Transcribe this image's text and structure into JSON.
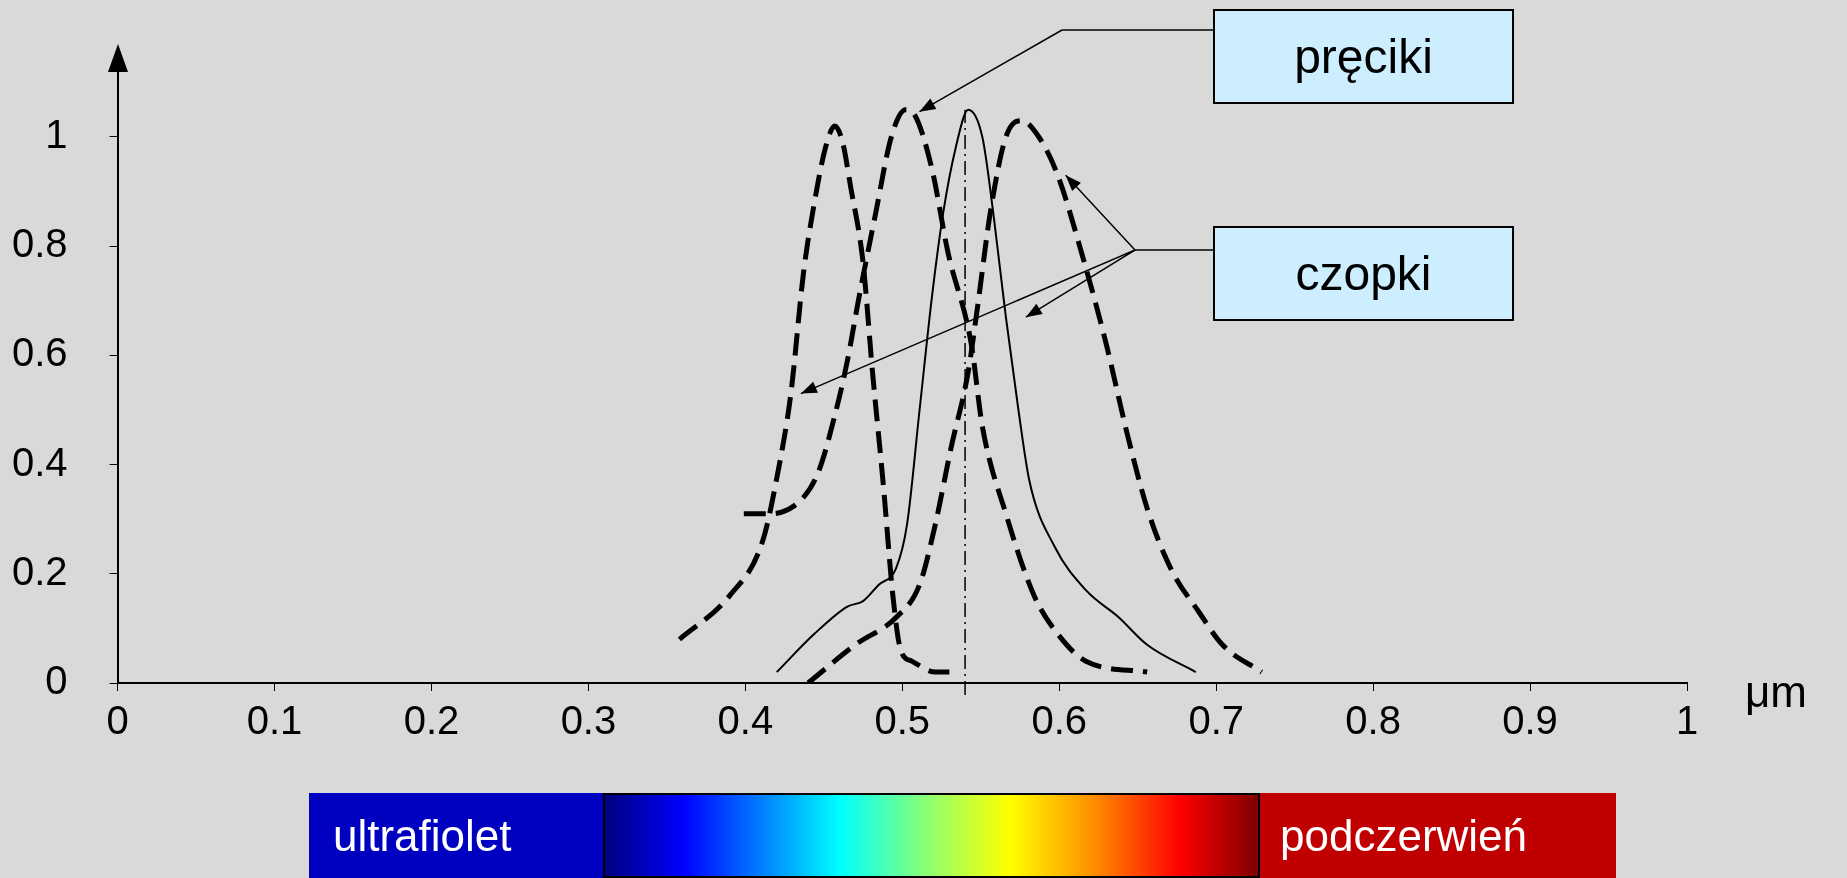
{
  "chart_data": {
    "type": "line",
    "xlabel": "μm",
    "xlim": [
      0,
      1
    ],
    "xticks": [
      0,
      0.1,
      0.2,
      0.3,
      0.4,
      0.5,
      0.6,
      0.7,
      0.8,
      0.9,
      1
    ],
    "ylim": [
      0,
      1.13
    ],
    "yticks": [
      0,
      0.2,
      0.4,
      0.6,
      0.8,
      1
    ],
    "grid": false,
    "legend": false,
    "marker": "none",
    "series": [
      {
        "color": "#000000",
        "line_style": "dashed",
        "x": [
          0.358,
          0.39,
          0.411,
          0.421,
          0.429,
          0.437,
          0.444,
          0.451,
          0.457,
          0.462,
          0.467,
          0.475,
          0.481,
          0.488,
          0.494,
          0.499,
          0.506,
          0.521,
          0.53
        ],
        "values": [
          0.08,
          0.16,
          0.26,
          0.39,
          0.53,
          0.75,
          0.88,
          0.98,
          1.02,
          0.99,
          0.91,
          0.77,
          0.57,
          0.36,
          0.16,
          0.06,
          0.04,
          0.02,
          0.02
        ]
      },
      {
        "color": "#000000",
        "line_style": "dashed",
        "x": [
          0.399,
          0.416,
          0.437,
          0.447,
          0.457,
          0.465,
          0.472,
          0.483,
          0.493,
          0.502,
          0.508,
          0.519,
          0.529,
          0.544,
          0.551,
          0.566,
          0.584,
          0.599,
          0.617,
          0.656
        ],
        "values": [
          0.31,
          0.31,
          0.34,
          0.39,
          0.49,
          0.59,
          0.7,
          0.86,
          1.0,
          1.05,
          1.04,
          0.94,
          0.79,
          0.62,
          0.47,
          0.31,
          0.16,
          0.09,
          0.04,
          0.02
        ]
      },
      {
        "color": "#000000",
        "line_style": "dashed",
        "x": [
          0.44,
          0.47,
          0.496,
          0.511,
          0.521,
          0.531,
          0.542,
          0.548,
          0.556,
          0.566,
          0.576,
          0.587,
          0.599,
          0.615,
          0.63,
          0.643,
          0.656,
          0.671,
          0.689,
          0.704,
          0.729
        ],
        "values": [
          0,
          0.07,
          0.12,
          0.18,
          0.29,
          0.43,
          0.57,
          0.69,
          0.86,
          1.0,
          1.03,
          1.0,
          0.93,
          0.78,
          0.62,
          0.46,
          0.32,
          0.21,
          0.13,
          0.07,
          0.02
        ]
      },
      {
        "color": "#000000",
        "line_style": "solid",
        "x": [
          0.42,
          0.444,
          0.465,
          0.475,
          0.485,
          0.496,
          0.503,
          0.511,
          0.519,
          0.526,
          0.534,
          0.542,
          0.551,
          0.558,
          0.566,
          0.574,
          0.581,
          0.597,
          0.617,
          0.638,
          0.656,
          0.687
        ],
        "values": [
          0.02,
          0.09,
          0.14,
          0.15,
          0.18,
          0.21,
          0.29,
          0.5,
          0.71,
          0.86,
          0.98,
          1.05,
          1.0,
          0.86,
          0.67,
          0.5,
          0.37,
          0.25,
          0.17,
          0.12,
          0.07,
          0.02
        ]
      }
    ],
    "ref_lines": [
      {
        "axis": "x",
        "value": 0.54,
        "line_style": "dashed",
        "color": "#000000"
      }
    ],
    "annotations": [
      "pręciki",
      "czopki",
      "ultrafiolet",
      "podczerwień"
    ]
  }
}
